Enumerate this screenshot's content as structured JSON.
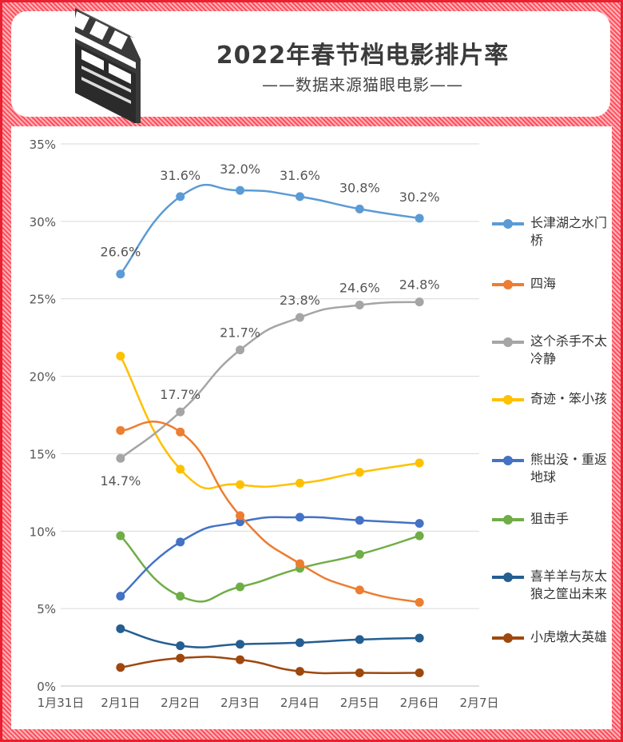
{
  "header": {
    "title": "2022年春节档电影排片率",
    "subtitle": "——数据来源猫眼电影——"
  },
  "chart_data": {
    "type": "line",
    "title": "2022年春节档电影排片率",
    "subtitle": "——数据来源猫眼电影——",
    "x": [
      "1月31日",
      "2月1日",
      "2月2日",
      "2月3日",
      "2月4日",
      "2月5日",
      "2月6日",
      "2月7日"
    ],
    "y_ticks": [
      "0%",
      "5%",
      "10%",
      "15%",
      "20%",
      "25%",
      "30%",
      "35%"
    ],
    "ylim": [
      0,
      35
    ],
    "y_unit": "%",
    "grid": "horizontal",
    "legend_position": "right",
    "series": [
      {
        "name": "长津湖之水门桥",
        "color": "#5b9bd5",
        "labeled": true,
        "x": [
          "2月1日",
          "2月2日",
          "2月3日",
          "2月4日",
          "2月5日",
          "2月6日"
        ],
        "values": [
          26.6,
          31.6,
          32.0,
          31.6,
          30.8,
          30.2
        ],
        "labels": [
          "26.6%",
          "31.6%",
          "32.0%",
          "31.6%",
          "30.8%",
          "30.2%"
        ]
      },
      {
        "name": "四海",
        "color": "#ed7d31",
        "labeled": false,
        "x": [
          "2月1日",
          "2月2日",
          "2月3日",
          "2月4日",
          "2月5日",
          "2月6日"
        ],
        "values": [
          16.5,
          16.4,
          11.0,
          7.9,
          6.2,
          5.4
        ]
      },
      {
        "name": "这个杀手不太冷静",
        "color": "#a5a5a5",
        "labeled": true,
        "x": [
          "2月1日",
          "2月2日",
          "2月3日",
          "2月4日",
          "2月5日",
          "2月6日"
        ],
        "values": [
          14.7,
          17.7,
          21.7,
          23.8,
          24.6,
          24.8
        ],
        "labels": [
          "14.7%",
          "17.7%",
          "21.7%",
          "23.8%",
          "24.6%",
          "24.8%"
        ]
      },
      {
        "name": "奇迹・笨小孩",
        "color": "#ffc000",
        "labeled": false,
        "x": [
          "2月1日",
          "2月2日",
          "2月3日",
          "2月4日",
          "2月5日",
          "2月6日"
        ],
        "values": [
          21.3,
          14.0,
          13.0,
          13.1,
          13.8,
          14.4
        ]
      },
      {
        "name": "熊出没・重返地球",
        "color": "#4472c4",
        "labeled": false,
        "x": [
          "2月1日",
          "2月2日",
          "2月3日",
          "2月4日",
          "2月5日",
          "2月6日"
        ],
        "values": [
          5.8,
          9.3,
          10.6,
          10.9,
          10.7,
          10.5
        ]
      },
      {
        "name": "狙击手",
        "color": "#70ad47",
        "labeled": false,
        "x": [
          "2月1日",
          "2月2日",
          "2月3日",
          "2月4日",
          "2月5日",
          "2月6日"
        ],
        "values": [
          9.7,
          5.8,
          6.4,
          7.6,
          8.5,
          9.7
        ]
      },
      {
        "name": "喜羊羊与灰太狼之筐出未来",
        "color": "#255e91",
        "labeled": false,
        "x": [
          "2月1日",
          "2月2日",
          "2月3日",
          "2月4日",
          "2月5日",
          "2月6日"
        ],
        "values": [
          3.7,
          2.6,
          2.7,
          2.8,
          3.0,
          3.1
        ]
      },
      {
        "name": "小虎墩大英雄",
        "color": "#9e480e",
        "labeled": false,
        "x": [
          "2月1日",
          "2月2日",
          "2月3日",
          "2月4日",
          "2月5日",
          "2月6日"
        ],
        "values": [
          1.2,
          1.8,
          1.7,
          0.95,
          0.85,
          0.85
        ]
      }
    ]
  },
  "colors": {
    "background": "#ff5a66",
    "frame": "#e8202f",
    "grid": "#d9d9d9"
  },
  "icons": {
    "header_icon": "clapperboard-icon"
  }
}
